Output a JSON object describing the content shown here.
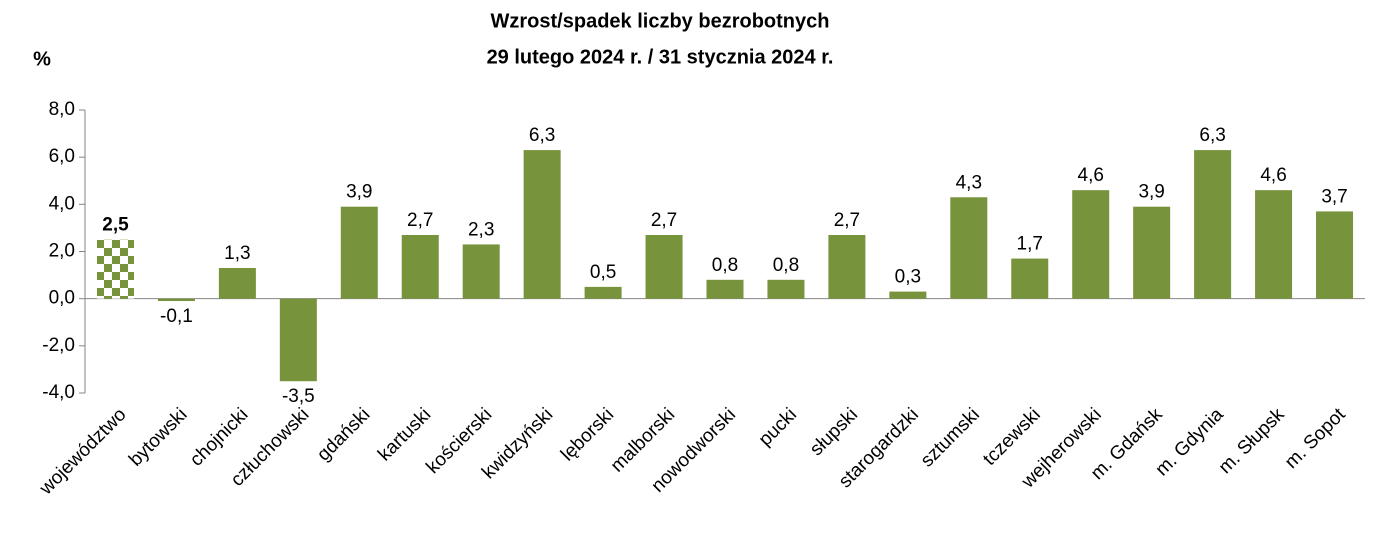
{
  "chart_data": {
    "type": "bar",
    "title": "Wzrost/spadek liczby bezrobotnych",
    "subtitle": "29 lutego 2024 r. / 31 stycznia 2024 r.",
    "ylabel": "%",
    "categories": [
      "województwo",
      "bytowski",
      "chojnicki",
      "człuchowski",
      "gdański",
      "kartuski",
      "kościerski",
      "kwidzyński",
      "lęborski",
      "malborski",
      "nowodworski",
      "pucki",
      "słupski",
      "starogardzki",
      "sztumski",
      "tczewski",
      "wejherowski",
      "m. Gdańsk",
      "m. Gdynia",
      "m. Słupsk",
      "m. Sopot"
    ],
    "values": [
      2.5,
      -0.1,
      1.3,
      -3.5,
      3.9,
      2.7,
      2.3,
      6.3,
      0.5,
      2.7,
      0.8,
      0.8,
      2.7,
      0.3,
      4.3,
      1.7,
      4.6,
      3.9,
      6.3,
      4.6,
      3.7
    ],
    "value_labels": [
      "2,5",
      "-0,1",
      "1,3",
      "-3,5",
      "3,9",
      "2,7",
      "2,3",
      "6,3",
      "0,5",
      "2,7",
      "0,8",
      "0,8",
      "2,7",
      "0,3",
      "4,3",
      "1,7",
      "4,6",
      "3,9",
      "6,3",
      "4,6",
      "3,7"
    ],
    "color": "#77933c",
    "highlight_index": 0,
    "ylim": [
      -4,
      8
    ],
    "yticks": [
      {
        "value": -4,
        "label": "-4,0"
      },
      {
        "value": -2,
        "label": "-2,0"
      },
      {
        "value": 0,
        "label": "0,0"
      },
      {
        "value": 2,
        "label": "2,0"
      },
      {
        "value": 4,
        "label": "4,0"
      },
      {
        "value": 6,
        "label": "6,0"
      },
      {
        "value": 8,
        "label": "8,0"
      }
    ],
    "grid": false
  }
}
